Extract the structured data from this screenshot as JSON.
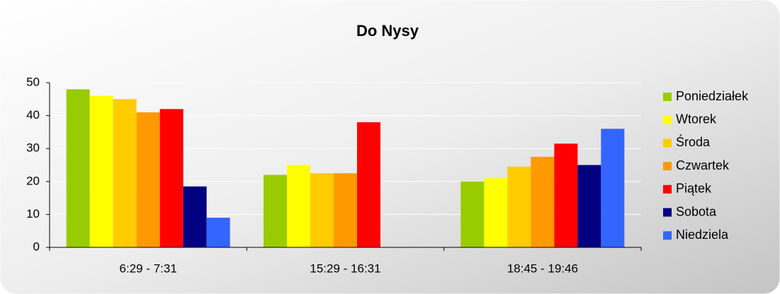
{
  "chart_data": {
    "type": "bar",
    "title": "Do Nysy",
    "categories": [
      "6:29 - 7:31",
      "15:29 - 16:31",
      "18:45 - 19:46"
    ],
    "series": [
      {
        "name": "Poniedziałek",
        "color": "#99cc00",
        "values": [
          48,
          22,
          20
        ]
      },
      {
        "name": "Wtorek",
        "color": "#ffff00",
        "values": [
          46,
          25,
          21
        ]
      },
      {
        "name": "Środa",
        "color": "#ffcc00",
        "values": [
          45,
          22.5,
          24.5
        ]
      },
      {
        "name": "Czwartek",
        "color": "#ff9900",
        "values": [
          41,
          22.5,
          27.5
        ]
      },
      {
        "name": "Piątek",
        "color": "#ff0000",
        "values": [
          42,
          38,
          31.5
        ]
      },
      {
        "name": "Sobota",
        "color": "#000080",
        "values": [
          18.5,
          null,
          25
        ]
      },
      {
        "name": "Niedziela",
        "color": "#3366ff",
        "values": [
          9,
          null,
          36
        ]
      }
    ],
    "ylim": [
      0,
      50
    ],
    "yticks": [
      0,
      10,
      20,
      30,
      40,
      50
    ],
    "grid": true,
    "legend": "right"
  }
}
